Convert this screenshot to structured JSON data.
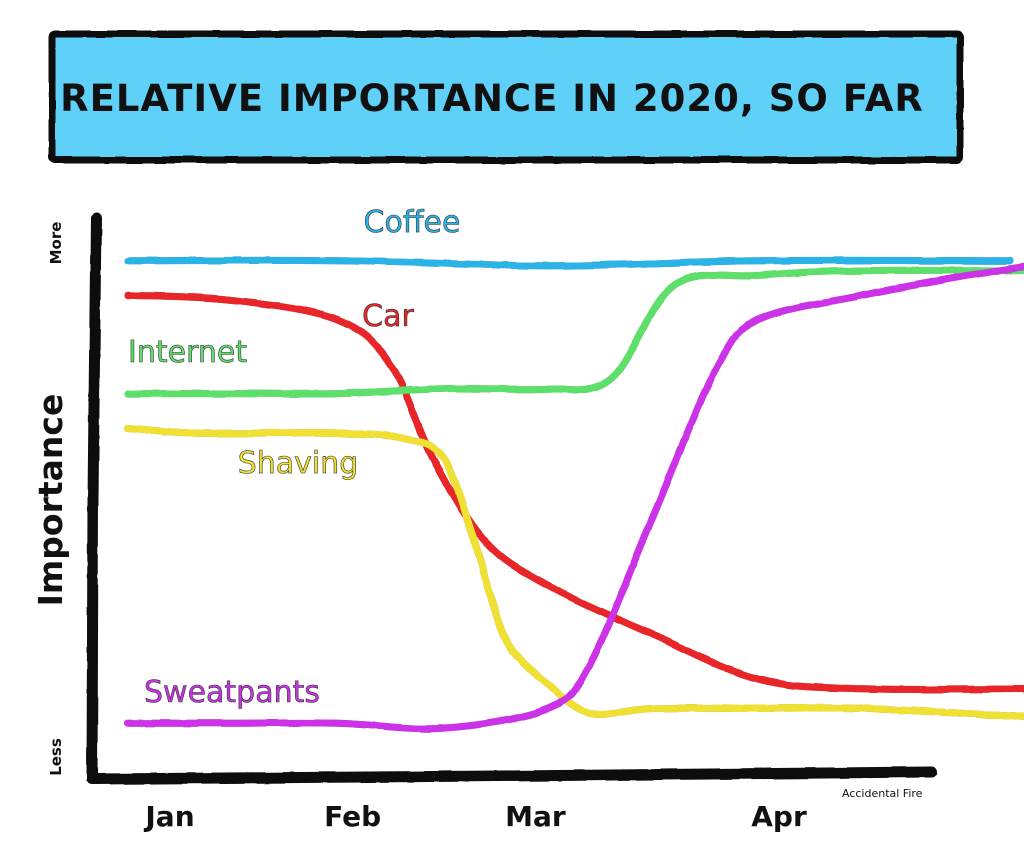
{
  "chart_data": {
    "type": "line",
    "title": "Relative Importance In 2020, So Far",
    "xlabel": "",
    "ylabel": "Importance",
    "y_tick_labels": {
      "top": "More",
      "bottom": "Less"
    },
    "credit": "Accidental Fire",
    "categories": [
      "Jan",
      "Feb",
      "Mar",
      "Apr"
    ],
    "xlim": [
      0,
      4.4
    ],
    "ylim": [
      0,
      100
    ],
    "grid": false,
    "series": [
      {
        "name": "Coffee",
        "color": "#2bb3e6",
        "x": [
          0.0,
          1.0,
          2.0,
          3.0,
          4.2
        ],
        "y": [
          97,
          97,
          96,
          97,
          97
        ]
      },
      {
        "name": "Car",
        "color": "#e8262a",
        "x": [
          0.0,
          0.5,
          1.0,
          1.25,
          1.45,
          1.7,
          2.0,
          2.5,
          3.0,
          3.5,
          4.4
        ],
        "y": [
          90,
          89,
          85,
          76,
          57,
          40,
          31,
          21,
          12,
          10,
          10
        ]
      },
      {
        "name": "Internet",
        "color": "#5de06a",
        "x": [
          0.0,
          0.5,
          1.0,
          1.5,
          2.0,
          2.3,
          2.6,
          3.0,
          3.5,
          4.4
        ],
        "y": [
          70,
          70,
          70,
          71,
          71,
          73,
          92,
          94,
          95,
          95
        ]
      },
      {
        "name": "Shaving",
        "color": "#f0e030",
        "x": [
          0.0,
          0.3,
          0.7,
          1.0,
          1.3,
          1.5,
          1.65,
          1.8,
          2.0,
          2.2,
          2.5,
          3.0,
          3.5,
          4.4
        ],
        "y": [
          63,
          62,
          62,
          62,
          61,
          57,
          40,
          20,
          11,
          5,
          6,
          6,
          6,
          4
        ]
      },
      {
        "name": "Sweatpants",
        "color": "#cc33e8",
        "x": [
          0.0,
          0.5,
          1.0,
          1.5,
          2.0,
          2.2,
          2.5,
          2.8,
          3.0,
          3.5,
          4.0,
          4.3
        ],
        "y": [
          3,
          3,
          3,
          2,
          6,
          15,
          45,
          75,
          85,
          90,
          94,
          96
        ]
      }
    ],
    "series_labels": [
      "Coffee",
      "Car",
      "Internet",
      "Shaving",
      "Sweatpants"
    ]
  }
}
